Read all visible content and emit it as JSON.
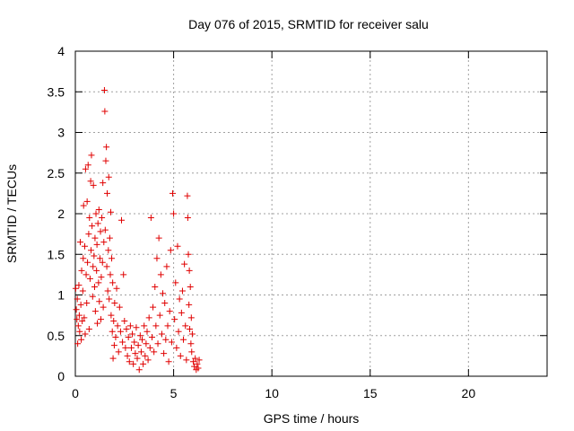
{
  "chart_data": {
    "type": "scatter",
    "title": "Day 076 of 2015, SRMTID for receiver salu",
    "xlabel": "GPS time / hours",
    "ylabel": "SRMTID / TECUs",
    "xlim": [
      0,
      24
    ],
    "ylim": [
      0,
      4
    ],
    "xticks": [
      0,
      5,
      10,
      15,
      20
    ],
    "xtick_labels": [
      "0",
      "5",
      "10",
      "15",
      "20"
    ],
    "yticks": [
      0,
      0.5,
      1,
      1.5,
      2,
      2.5,
      3,
      3.5,
      4
    ],
    "ytick_labels": [
      "0",
      "0.5",
      "1",
      "1.5",
      "2",
      "2.5",
      "3",
      "3.5",
      "4"
    ],
    "grid": true,
    "marker": "+",
    "series": [
      {
        "name": "SRMTID",
        "color": "#e00000",
        "points": [
          [
            0.02,
            1.08
          ],
          [
            0.05,
            0.82
          ],
          [
            0.08,
            0.7
          ],
          [
            0.1,
            0.95
          ],
          [
            0.12,
            0.4
          ],
          [
            0.15,
            0.62
          ],
          [
            0.18,
            1.12
          ],
          [
            0.2,
            0.75
          ],
          [
            0.22,
            0.55
          ],
          [
            0.25,
            1.65
          ],
          [
            0.28,
            0.88
          ],
          [
            0.3,
            0.45
          ],
          [
            0.32,
            1.3
          ],
          [
            0.35,
            0.68
          ],
          [
            0.38,
            1.05
          ],
          [
            0.4,
            1.45
          ],
          [
            0.42,
            2.1
          ],
          [
            0.45,
            0.72
          ],
          [
            0.48,
            1.6
          ],
          [
            0.5,
            0.52
          ],
          [
            0.52,
            2.55
          ],
          [
            0.55,
            1.25
          ],
          [
            0.58,
            0.9
          ],
          [
            0.6,
            2.15
          ],
          [
            0.62,
            1.4
          ],
          [
            0.65,
            2.6
          ],
          [
            0.68,
            1.75
          ],
          [
            0.7,
            0.58
          ],
          [
            0.72,
            1.95
          ],
          [
            0.75,
            1.2
          ],
          [
            0.78,
            2.4
          ],
          [
            0.8,
            1.55
          ],
          [
            0.82,
            2.72
          ],
          [
            0.85,
            1.85
          ],
          [
            0.88,
            0.98
          ],
          [
            0.9,
            1.35
          ],
          [
            0.92,
            2.35
          ],
          [
            0.95,
            1.48
          ],
          [
            0.98,
            1.1
          ],
          [
            1.0,
            1.7
          ],
          [
            1.02,
            0.8
          ],
          [
            1.05,
            2.0
          ],
          [
            1.08,
            1.3
          ],
          [
            1.1,
            1.62
          ],
          [
            1.12,
            0.65
          ],
          [
            1.15,
            1.88
          ],
          [
            1.18,
            1.15
          ],
          [
            1.2,
            2.05
          ],
          [
            1.22,
            0.92
          ],
          [
            1.25,
            1.45
          ],
          [
            1.28,
            1.78
          ],
          [
            1.3,
            0.7
          ],
          [
            1.32,
            1.22
          ],
          [
            1.35,
            1.95
          ],
          [
            1.38,
            1.4
          ],
          [
            1.4,
            2.38
          ],
          [
            1.42,
            0.85
          ],
          [
            1.45,
            1.65
          ],
          [
            1.48,
            3.52
          ],
          [
            1.5,
            3.26
          ],
          [
            1.52,
            1.8
          ],
          [
            1.55,
            2.65
          ],
          [
            1.58,
            2.82
          ],
          [
            1.6,
            1.35
          ],
          [
            1.62,
            2.25
          ],
          [
            1.65,
            1.05
          ],
          [
            1.68,
            1.55
          ],
          [
            1.7,
            2.45
          ],
          [
            1.72,
            0.95
          ],
          [
            1.75,
            1.7
          ],
          [
            1.78,
            1.25
          ],
          [
            1.8,
            2.02
          ],
          [
            1.82,
            0.75
          ],
          [
            1.85,
            1.45
          ],
          [
            1.88,
            0.55
          ],
          [
            1.9,
            1.15
          ],
          [
            1.92,
            0.22
          ],
          [
            1.95,
            0.68
          ],
          [
            1.98,
            0.38
          ],
          [
            2.0,
            0.9
          ],
          [
            2.05,
            0.48
          ],
          [
            2.1,
            1.08
          ],
          [
            2.15,
            0.62
          ],
          [
            2.2,
            0.3
          ],
          [
            2.25,
            0.85
          ],
          [
            2.3,
            0.55
          ],
          [
            2.35,
            1.92
          ],
          [
            2.4,
            0.42
          ],
          [
            2.45,
            1.25
          ],
          [
            2.5,
            0.68
          ],
          [
            2.55,
            0.35
          ],
          [
            2.6,
            0.58
          ],
          [
            2.65,
            0.25
          ],
          [
            2.7,
            0.48
          ],
          [
            2.75,
            0.18
          ],
          [
            2.8,
            0.62
          ],
          [
            2.85,
            0.35
          ],
          [
            2.9,
            0.52
          ],
          [
            2.95,
            0.15
          ],
          [
            3.0,
            0.42
          ],
          [
            3.05,
            0.28
          ],
          [
            3.1,
            0.6
          ],
          [
            3.15,
            0.22
          ],
          [
            3.2,
            0.38
          ],
          [
            3.25,
            0.08
          ],
          [
            3.3,
            0.5
          ],
          [
            3.35,
            0.3
          ],
          [
            3.4,
            0.45
          ],
          [
            3.45,
            0.15
          ],
          [
            3.5,
            0.62
          ],
          [
            3.55,
            0.25
          ],
          [
            3.6,
            0.4
          ],
          [
            3.65,
            0.55
          ],
          [
            3.7,
            0.2
          ],
          [
            3.75,
            0.72
          ],
          [
            3.8,
            0.35
          ],
          [
            3.85,
            1.95
          ],
          [
            3.9,
            0.48
          ],
          [
            3.95,
            0.85
          ],
          [
            4.0,
            0.3
          ],
          [
            4.05,
            1.1
          ],
          [
            4.1,
            0.62
          ],
          [
            4.15,
            1.45
          ],
          [
            4.2,
            0.4
          ],
          [
            4.25,
            1.7
          ],
          [
            4.3,
            0.75
          ],
          [
            4.35,
            1.25
          ],
          [
            4.4,
            0.52
          ],
          [
            4.45,
            1.02
          ],
          [
            4.5,
            0.28
          ],
          [
            4.55,
            0.9
          ],
          [
            4.6,
            0.45
          ],
          [
            4.65,
            1.35
          ],
          [
            4.7,
            0.62
          ],
          [
            4.75,
            0.18
          ],
          [
            4.8,
            0.8
          ],
          [
            4.85,
            1.55
          ],
          [
            4.9,
            0.42
          ],
          [
            4.95,
            2.25
          ],
          [
            5.0,
            2.0
          ],
          [
            5.05,
            0.7
          ],
          [
            5.1,
            1.15
          ],
          [
            5.15,
            0.35
          ],
          [
            5.2,
            1.6
          ],
          [
            5.25,
            0.55
          ],
          [
            5.3,
            0.95
          ],
          [
            5.35,
            0.25
          ],
          [
            5.4,
            0.78
          ],
          [
            5.45,
            1.05
          ],
          [
            5.5,
            0.45
          ],
          [
            5.55,
            1.38
          ],
          [
            5.6,
            0.62
          ],
          [
            5.65,
            0.2
          ],
          [
            5.7,
            2.22
          ],
          [
            5.72,
            1.95
          ],
          [
            5.75,
            1.5
          ],
          [
            5.78,
            0.88
          ],
          [
            5.8,
            1.3
          ],
          [
            5.82,
            0.58
          ],
          [
            5.85,
            1.1
          ],
          [
            5.88,
            0.4
          ],
          [
            5.9,
            0.72
          ],
          [
            5.92,
            0.3
          ],
          [
            5.95,
            0.52
          ],
          [
            6.0,
            0.18
          ],
          [
            6.05,
            0.12
          ],
          [
            6.1,
            0.22
          ],
          [
            6.15,
            0.08
          ],
          [
            6.2,
            0.15
          ],
          [
            6.25,
            0.1
          ],
          [
            6.3,
            0.2
          ]
        ]
      }
    ]
  }
}
